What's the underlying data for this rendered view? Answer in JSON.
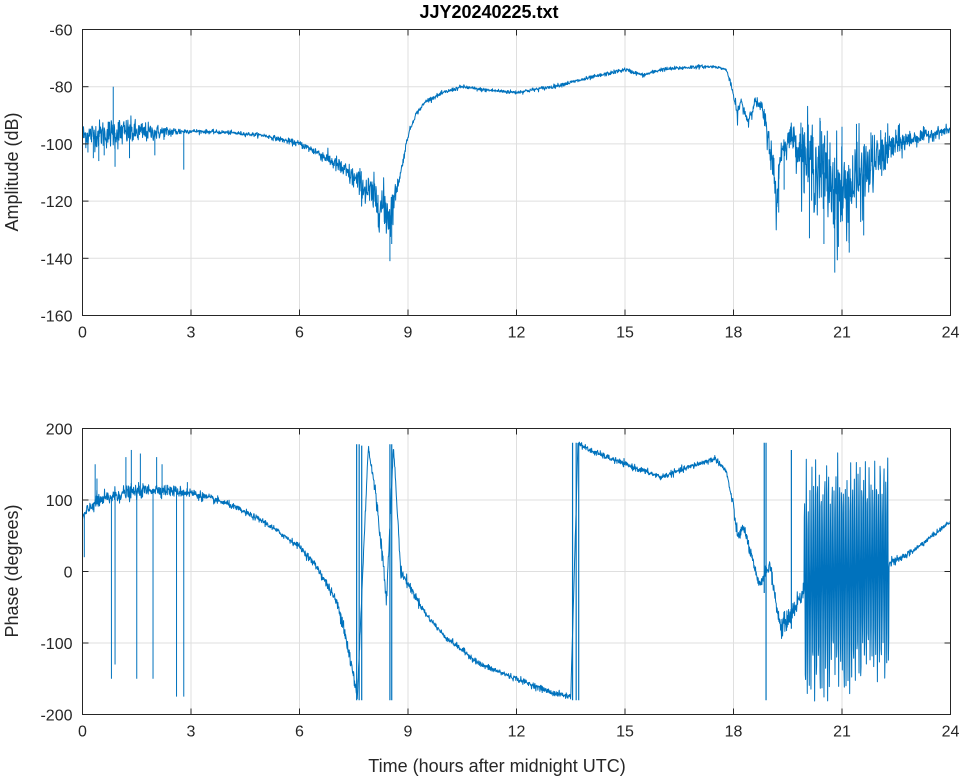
{
  "figure": {
    "trace_color": "#0072BD",
    "grid_color": "#dfdfdf",
    "axis_color": "#262626"
  },
  "chart_data": [
    {
      "type": "line",
      "id": "amplitude",
      "title": "JJY20240225.txt",
      "xlabel": "",
      "ylabel": "Amplitude (dB)",
      "xlim": [
        0,
        24
      ],
      "ylim": [
        -160,
        -60
      ],
      "xticks": [
        0,
        3,
        6,
        9,
        12,
        15,
        18,
        21,
        24
      ],
      "yticks": [
        -160,
        -140,
        -120,
        -100,
        -80,
        -60
      ],
      "grid": true,
      "series": [
        {
          "name": "Amplitude",
          "x": [
            0,
            1,
            2,
            3,
            4,
            5,
            6,
            6.5,
            7,
            7.5,
            8,
            8.3,
            8.5,
            8.6,
            8.8,
            9,
            9.2,
            9.5,
            10,
            10.5,
            11,
            12,
            12.5,
            13,
            14,
            15,
            15.5,
            16,
            17,
            17.5,
            17.8,
            17.9,
            18,
            18.1,
            18.2,
            18.4,
            18.6,
            18.8,
            19.0,
            19.1,
            19.2,
            19.3,
            19.6,
            20,
            20.5,
            21,
            21.5,
            22,
            22.5,
            23,
            24
          ],
          "values": [
            -97,
            -96,
            -96,
            -95.5,
            -96,
            -97,
            -100,
            -103,
            -107,
            -112,
            -118,
            -122,
            -125,
            -120,
            -110,
            -97,
            -90,
            -85,
            -82,
            -80,
            -81,
            -82,
            -81,
            -80,
            -77,
            -74,
            -76,
            -74,
            -73,
            -73,
            -74,
            -78,
            -83,
            -90,
            -85,
            -92,
            -85,
            -88,
            -100,
            -110,
            -120,
            -103,
            -97,
            -105,
            -110,
            -118,
            -112,
            -105,
            -100,
            -98,
            -95
          ],
          "noise": [
            3,
            4,
            2,
            0.5,
            0.5,
            0.5,
            0.8,
            1.2,
            2,
            3,
            5,
            6,
            8,
            3,
            1,
            0.8,
            0.6,
            0.5,
            0.5,
            0.5,
            0.5,
            0.5,
            0.5,
            0.5,
            0.5,
            0.5,
            0.5,
            0.5,
            0.5,
            0.3,
            0.3,
            0.6,
            1,
            2,
            1,
            2,
            1,
            2,
            4,
            6,
            8,
            3,
            3,
            10,
            12,
            12,
            10,
            6,
            4,
            2,
            1
          ],
          "spikes": [
            [
              0.15,
              -103
            ],
            [
              0.3,
              -105
            ],
            [
              0.45,
              -106
            ],
            [
              0.6,
              -104
            ],
            [
              0.85,
              -80
            ],
            [
              0.9,
              -108
            ],
            [
              1.3,
              -105
            ],
            [
              2.0,
              -104
            ],
            [
              2.8,
              -109
            ],
            [
              8.35,
              -128
            ],
            [
              8.5,
              -141
            ],
            [
              8.55,
              -135
            ],
            [
              19.25,
              -124
            ],
            [
              19.4,
              -116
            ],
            [
              20.1,
              -133
            ],
            [
              20.5,
              -135
            ],
            [
              20.8,
              -145
            ],
            [
              20.9,
              -136
            ],
            [
              21.2,
              -138
            ],
            [
              21.6,
              -132
            ],
            [
              19.9,
              -100
            ],
            [
              20.4,
              -92
            ],
            [
              21.0,
              -94
            ],
            [
              21.4,
              -93
            ],
            [
              21.8,
              -96
            ],
            [
              22.2,
              -96
            ]
          ]
        }
      ]
    },
    {
      "type": "line",
      "id": "phase",
      "title": "",
      "xlabel": "Time (hours after midnight UTC)",
      "ylabel": "Phase (degrees)",
      "xlim": [
        0,
        24
      ],
      "ylim": [
        -200,
        200
      ],
      "xticks": [
        0,
        3,
        6,
        9,
        12,
        15,
        18,
        21,
        24
      ],
      "yticks": [
        -200,
        -100,
        0,
        100,
        200
      ],
      "grid": true,
      "series": [
        {
          "name": "Phase",
          "x": [
            0,
            0.3,
            1,
            2,
            3,
            4,
            5,
            6,
            6.5,
            7,
            7.2,
            7.5,
            7.6,
            7.9,
            8.1,
            8.3,
            8.4,
            8.6,
            8.8,
            9.5,
            10,
            11,
            12,
            12.5,
            13,
            13.5,
            13.7,
            14,
            15,
            16,
            17,
            17.5,
            17.8,
            18,
            18.1,
            18.3,
            18.5,
            18.7,
            19,
            19.3,
            19.6,
            20,
            20.5,
            21,
            21.5,
            22,
            22.5,
            23,
            24
          ],
          "values": [
            75,
            95,
            108,
            115,
            110,
            95,
            70,
            35,
            5,
            -40,
            -70,
            -150,
            -175,
            175,
            110,
            20,
            -40,
            175,
            0,
            -60,
            -90,
            -130,
            -150,
            -160,
            -170,
            -175,
            180,
            170,
            150,
            132,
            150,
            158,
            140,
            90,
            50,
            60,
            20,
            -20,
            10,
            -80,
            -60,
            -20,
            -10,
            -5,
            0,
            5,
            15,
            30,
            70
          ],
          "noise": [
            6,
            8,
            8,
            6,
            5,
            3,
            3,
            3,
            4,
            5,
            8,
            10,
            5,
            5,
            8,
            10,
            8,
            5,
            6,
            3,
            3,
            3,
            3,
            3,
            3,
            3,
            3,
            3,
            3,
            3,
            3,
            3,
            3,
            6,
            6,
            6,
            6,
            6,
            6,
            10,
            10,
            10,
            10,
            10,
            10,
            8,
            4,
            3,
            2
          ],
          "spikes": [
            [
              0.05,
              20
            ],
            [
              0.35,
              150
            ],
            [
              0.4,
              130
            ],
            [
              0.8,
              -150
            ],
            [
              0.9,
              -130
            ],
            [
              1.2,
              160
            ],
            [
              1.35,
              170
            ],
            [
              1.5,
              -150
            ],
            [
              1.6,
              165
            ],
            [
              1.95,
              -150
            ],
            [
              2.05,
              160
            ],
            [
              2.2,
              150
            ],
            [
              2.6,
              -175
            ],
            [
              2.8,
              -175
            ],
            [
              2.9,
              125
            ]
          ],
          "jumps": [
            [
              7.58,
              -180,
              178
            ],
            [
              7.65,
              178,
              -180
            ],
            [
              7.72,
              -180,
              176
            ],
            [
              8.5,
              -180,
              178
            ],
            [
              8.55,
              178,
              -180
            ],
            [
              13.55,
              -180,
              180
            ],
            [
              13.65,
              180,
              -180
            ],
            [
              13.72,
              -180,
              180
            ],
            [
              18.85,
              -30,
              180
            ],
            [
              18.9,
              180,
              -180
            ],
            [
              19.6,
              -80,
              170
            ]
          ],
          "oscillation": {
            "x_start": 19.95,
            "x_end": 22.3,
            "low": -180,
            "high": 180,
            "cycles": 46
          }
        }
      ]
    }
  ]
}
